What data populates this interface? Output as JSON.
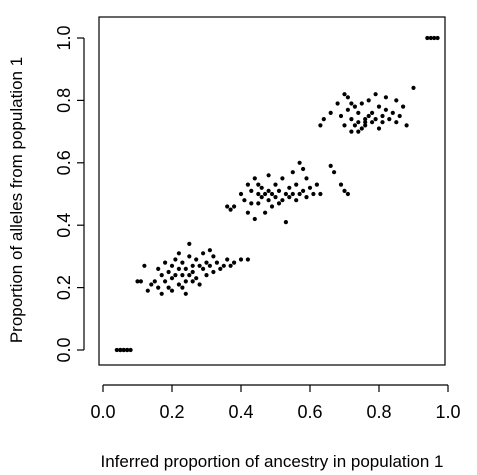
{
  "chart_data": {
    "type": "scatter",
    "title": "",
    "xlabel": "Inferred proportion of ancestry in population 1",
    "ylabel": "Proportion of alleles from population 1",
    "xlim": [
      0.0,
      1.0
    ],
    "ylim": [
      0.0,
      1.0
    ],
    "xticks": [
      "0.0",
      "0.2",
      "0.4",
      "0.6",
      "0.8",
      "1.0"
    ],
    "yticks": [
      "0.0",
      "0.2",
      "0.4",
      "0.6",
      "0.8",
      "1.0"
    ],
    "grid": false,
    "legend": "none",
    "marker_color": "#000000",
    "series": [
      {
        "x": [
          0.04,
          0.05,
          0.06,
          0.07,
          0.08,
          0.05,
          0.06,
          0.07,
          0.1,
          0.11,
          0.12,
          0.13,
          0.14,
          0.15,
          0.16,
          0.16,
          0.17,
          0.17,
          0.18,
          0.18,
          0.19,
          0.19,
          0.2,
          0.2,
          0.2,
          0.21,
          0.21,
          0.22,
          0.22,
          0.22,
          0.23,
          0.23,
          0.23,
          0.24,
          0.24,
          0.24,
          0.25,
          0.25,
          0.25,
          0.26,
          0.26,
          0.26,
          0.27,
          0.27,
          0.28,
          0.28,
          0.29,
          0.29,
          0.3,
          0.3,
          0.31,
          0.31,
          0.32,
          0.32,
          0.33,
          0.34,
          0.35,
          0.36,
          0.37,
          0.38,
          0.4,
          0.42,
          0.36,
          0.37,
          0.38,
          0.4,
          0.41,
          0.42,
          0.42,
          0.43,
          0.43,
          0.44,
          0.44,
          0.45,
          0.45,
          0.45,
          0.46,
          0.46,
          0.47,
          0.47,
          0.48,
          0.48,
          0.48,
          0.49,
          0.49,
          0.5,
          0.5,
          0.51,
          0.51,
          0.52,
          0.52,
          0.53,
          0.53,
          0.54,
          0.54,
          0.55,
          0.55,
          0.56,
          0.56,
          0.57,
          0.57,
          0.58,
          0.58,
          0.59,
          0.59,
          0.6,
          0.61,
          0.62,
          0.63,
          0.66,
          0.67,
          0.69,
          0.7,
          0.71,
          0.63,
          0.64,
          0.66,
          0.68,
          0.69,
          0.7,
          0.7,
          0.71,
          0.72,
          0.72,
          0.73,
          0.73,
          0.74,
          0.74,
          0.75,
          0.75,
          0.76,
          0.76,
          0.77,
          0.77,
          0.78,
          0.78,
          0.79,
          0.79,
          0.8,
          0.8,
          0.81,
          0.81,
          0.82,
          0.82,
          0.83,
          0.84,
          0.85,
          0.85,
          0.86,
          0.87,
          0.88,
          0.9,
          0.71,
          0.72,
          0.74,
          0.76,
          0.94,
          0.95,
          0.96,
          0.97
        ],
        "y": [
          0.0,
          0.0,
          0.0,
          0.0,
          0.0,
          0.0,
          0.0,
          0.0,
          0.22,
          0.22,
          0.27,
          0.19,
          0.21,
          0.22,
          0.26,
          0.2,
          0.24,
          0.18,
          0.28,
          0.22,
          0.25,
          0.2,
          0.27,
          0.23,
          0.19,
          0.24,
          0.29,
          0.26,
          0.21,
          0.31,
          0.24,
          0.2,
          0.28,
          0.26,
          0.22,
          0.18,
          0.3,
          0.24,
          0.34,
          0.27,
          0.22,
          0.25,
          0.29,
          0.23,
          0.27,
          0.21,
          0.31,
          0.26,
          0.28,
          0.24,
          0.32,
          0.27,
          0.3,
          0.25,
          0.28,
          0.26,
          0.27,
          0.29,
          0.27,
          0.28,
          0.29,
          0.29,
          0.46,
          0.45,
          0.46,
          0.5,
          0.48,
          0.44,
          0.53,
          0.51,
          0.47,
          0.55,
          0.42,
          0.5,
          0.53,
          0.47,
          0.49,
          0.52,
          0.44,
          0.5,
          0.56,
          0.48,
          0.51,
          0.46,
          0.5,
          0.53,
          0.49,
          0.47,
          0.51,
          0.55,
          0.48,
          0.5,
          0.41,
          0.52,
          0.49,
          0.57,
          0.5,
          0.53,
          0.48,
          0.6,
          0.5,
          0.58,
          0.51,
          0.55,
          0.49,
          0.52,
          0.5,
          0.53,
          0.5,
          0.59,
          0.57,
          0.53,
          0.51,
          0.5,
          0.72,
          0.74,
          0.76,
          0.79,
          0.75,
          0.72,
          0.82,
          0.77,
          0.74,
          0.7,
          0.78,
          0.72,
          0.76,
          0.73,
          0.71,
          0.79,
          0.74,
          0.72,
          0.75,
          0.8,
          0.73,
          0.76,
          0.82,
          0.74,
          0.71,
          0.78,
          0.75,
          0.73,
          0.77,
          0.81,
          0.74,
          0.76,
          0.73,
          0.8,
          0.75,
          0.78,
          0.72,
          0.84,
          0.81,
          0.79,
          0.7,
          0.73,
          1.0,
          1.0,
          1.0,
          1.0
        ]
      }
    ]
  }
}
